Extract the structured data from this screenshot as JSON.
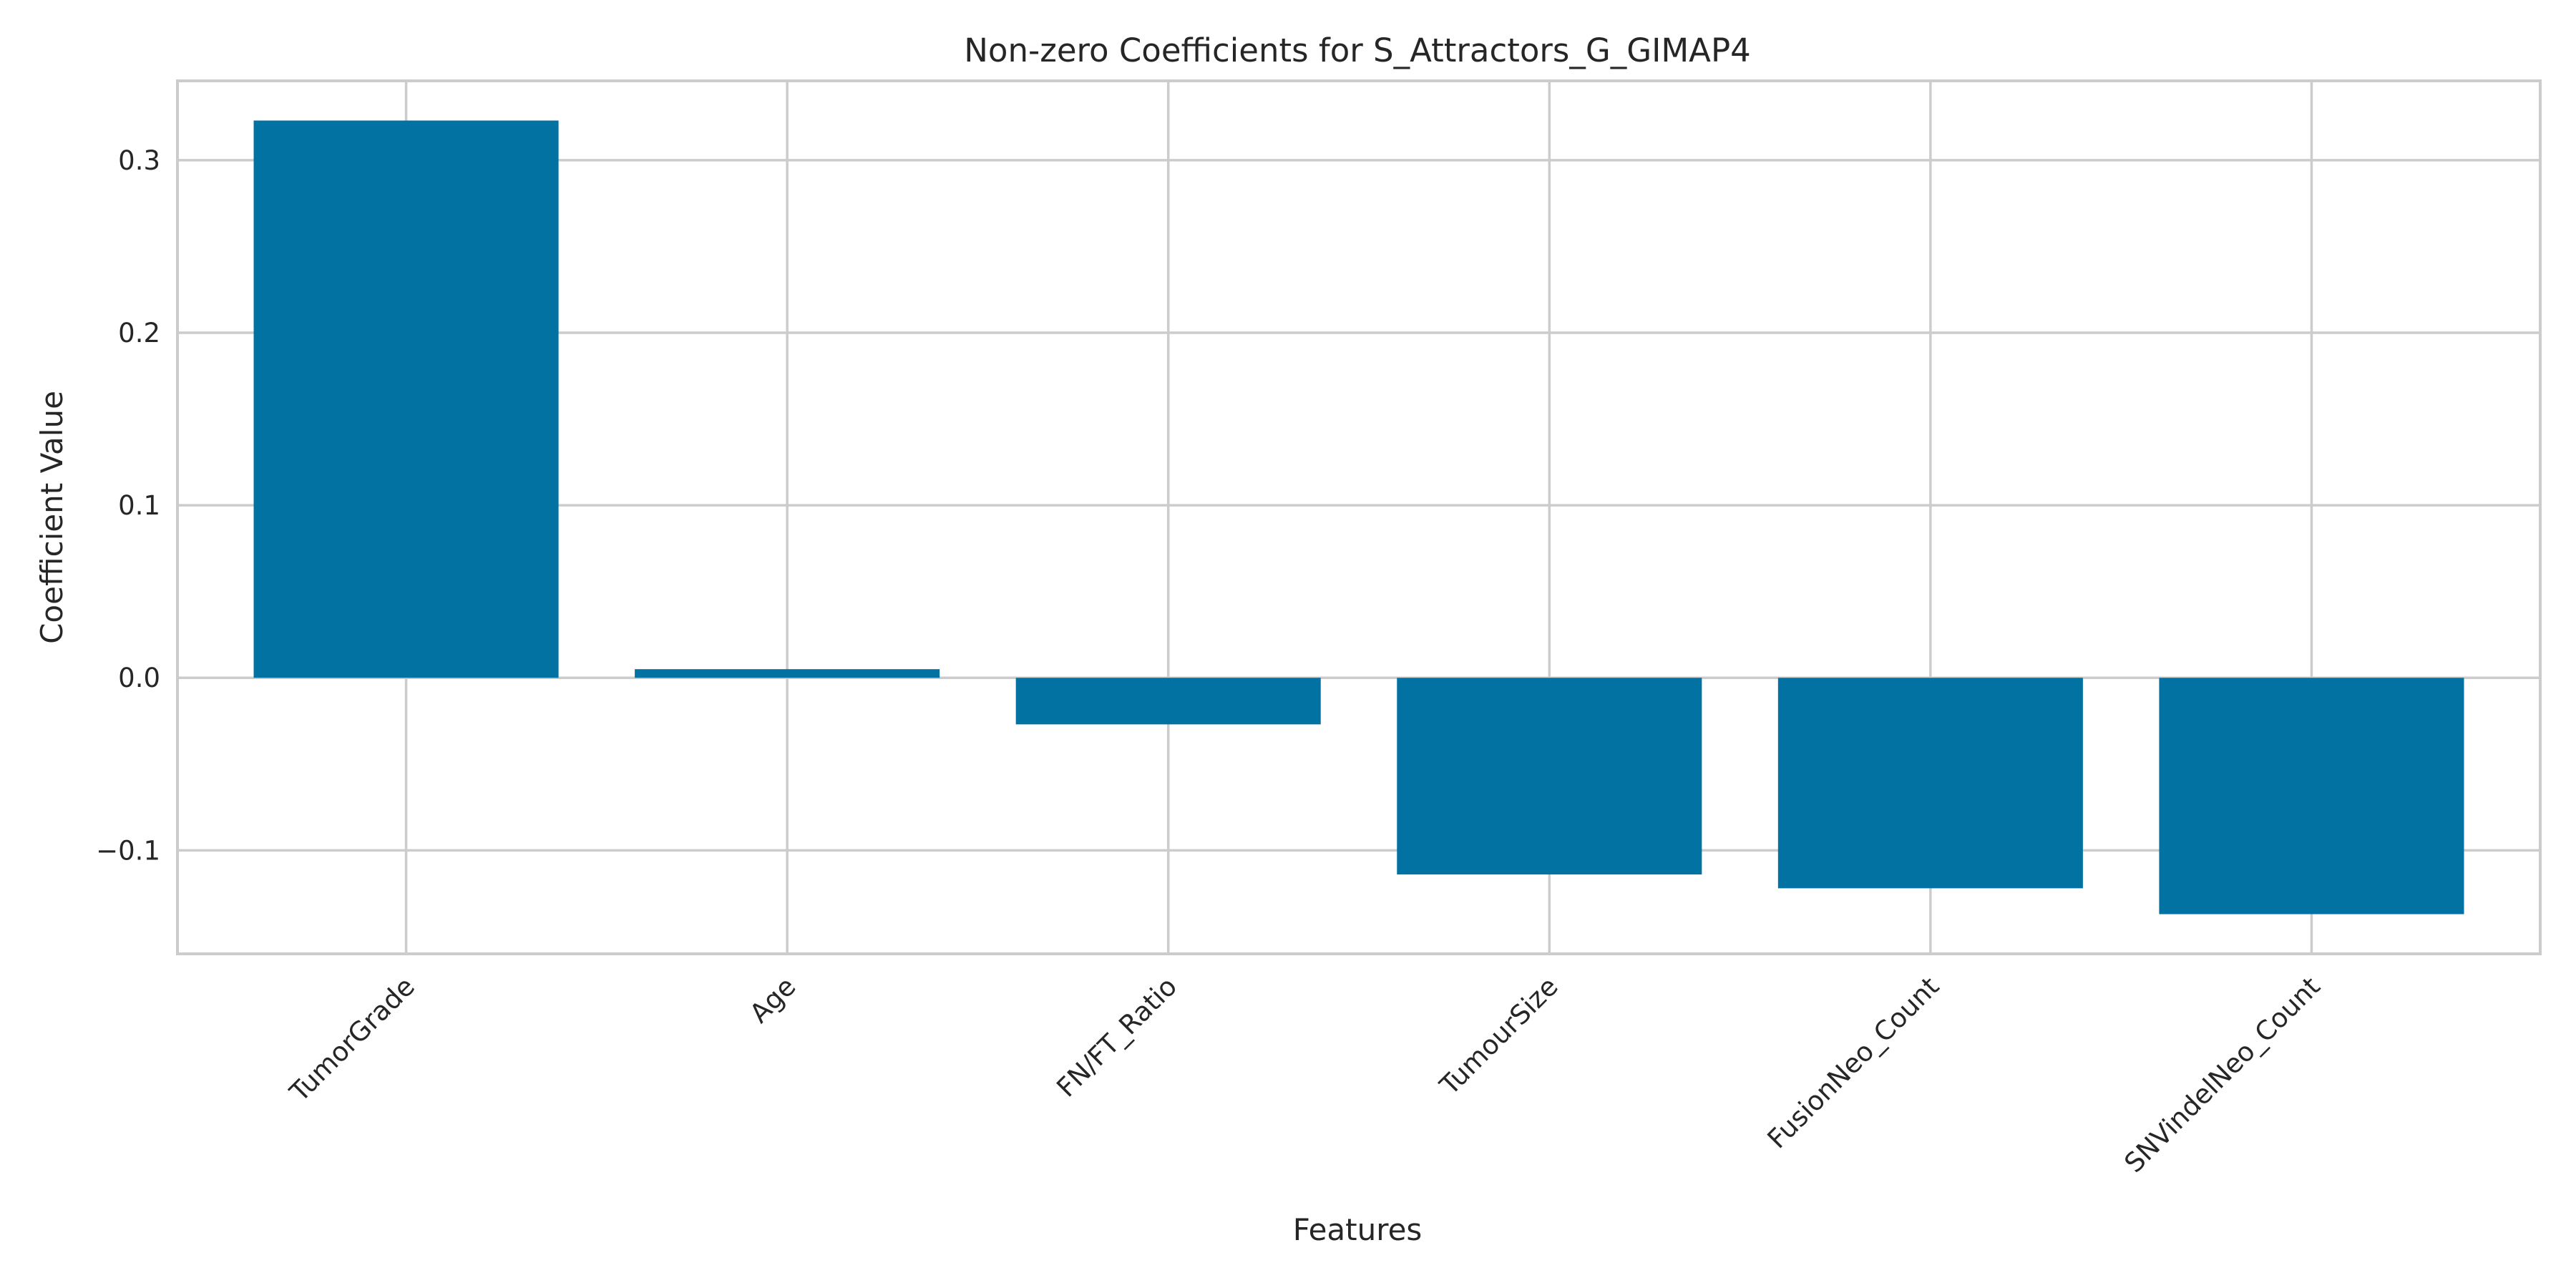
{
  "chart_data": {
    "type": "bar",
    "title": "Non-zero Coefficients for S_Attractors_G_GIMAP4",
    "xlabel": "Features",
    "ylabel": "Coefficient Value",
    "categories": [
      "TumorGrade",
      "Age",
      "FN/FT_Ratio",
      "TumourSize",
      "FusionNeo_Count",
      "SNVindelNeo_Count"
    ],
    "values": [
      0.323,
      0.005,
      -0.027,
      -0.114,
      -0.122,
      -0.137
    ],
    "ylim": [
      -0.16,
      0.346
    ],
    "yticks": [
      -0.1,
      0.0,
      0.1,
      0.2,
      0.3
    ],
    "ytick_labels": [
      "−0.1",
      "0.0",
      "0.1",
      "0.2",
      "0.3"
    ],
    "grid": true,
    "bar_color": "#0272a2",
    "grid_color": "#cccccc",
    "frame_color": "#cccccc"
  }
}
